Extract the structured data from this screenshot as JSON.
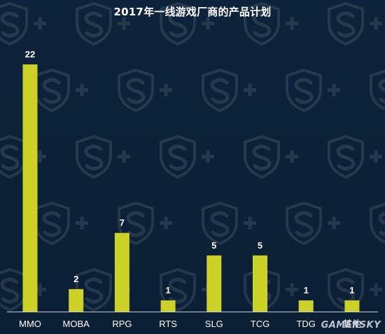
{
  "chart_data": {
    "type": "bar",
    "title": "2017年一线游戏厂商的产品计划",
    "categories": [
      "MMO",
      "MOBA",
      "RPG",
      "RTS",
      "SLG",
      "TCG",
      "TDG",
      "其他"
    ],
    "values": [
      22,
      2,
      7,
      1,
      5,
      5,
      1,
      1
    ],
    "xlabel": "",
    "ylabel": "",
    "ylim": [
      0,
      22
    ],
    "grid": false,
    "legend": "none",
    "colors": {
      "bar": "#cbd126",
      "background": "#0c2138",
      "text": "#ffffff",
      "axis": "#c8cdd4"
    }
  },
  "watermark": {
    "logo_icon": "shield-s-plus-icon",
    "brand_text": "GAMERSKY"
  }
}
